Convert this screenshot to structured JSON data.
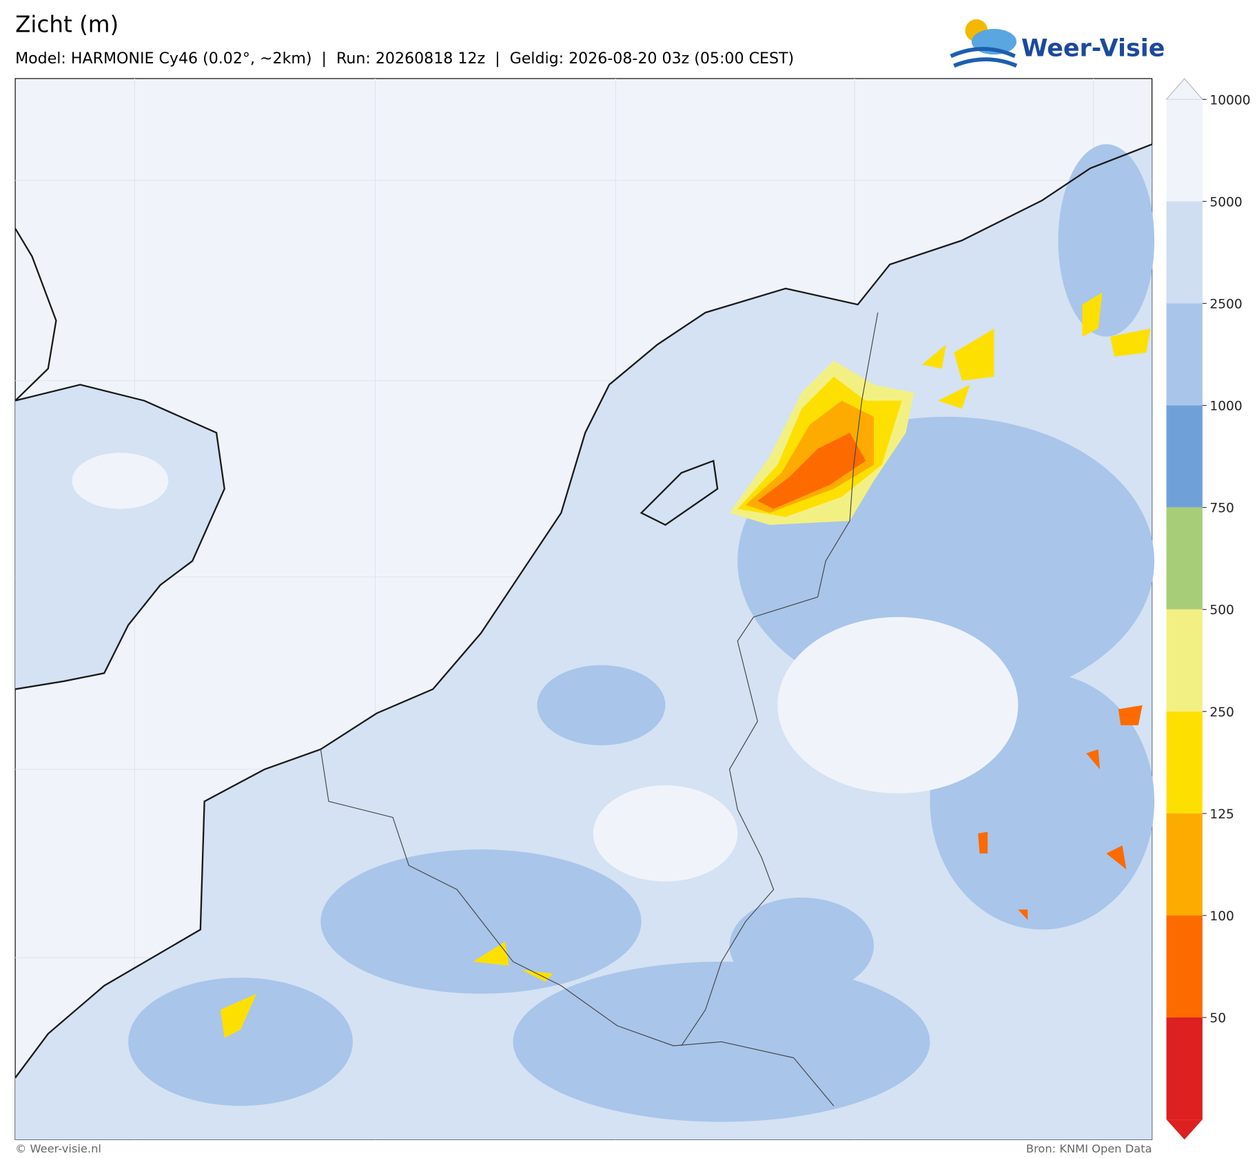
{
  "header": {
    "title": "Zicht (m)",
    "subtitle": "Model: HARMONIE Cy46 (0.02°, ~2km)  |  Run: 20260818 12z  |  Geldig: 2026-08-20 03z (05:00 CEST)",
    "logo": "Weer-Visie"
  },
  "colorbar": {
    "labels": [
      "10000",
      "5000",
      "2500",
      "1000",
      "750",
      "500",
      "250",
      "125",
      "100",
      "50"
    ],
    "colors": [
      "#f0f4fa",
      "#cfdef1",
      "#a9c5ea",
      "#6fa1d8",
      "#a8cd78",
      "#f3f083",
      "#fde000",
      "#fdab00",
      "#fd6a00",
      "#dd2020"
    ]
  },
  "footer": {
    "left": "© Weer-visie.nl",
    "right": "Bron: KNMI Open Data"
  }
}
